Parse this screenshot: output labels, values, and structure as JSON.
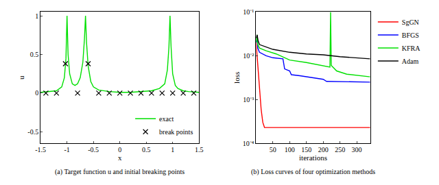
{
  "chart_data": [
    {
      "type": "line",
      "caption": "(a) Target function u and initial breaking points",
      "x_label": "x",
      "y_label": "u",
      "xlim": [
        -1.5,
        1.5
      ],
      "ylim": [
        -0.65,
        1.05
      ],
      "xticks": [
        -1.5,
        -1,
        -0.5,
        0,
        0.5,
        1,
        1.5
      ],
      "yticks": [
        -0.5,
        0,
        0.5,
        1
      ],
      "legend": "lower right",
      "series": [
        {
          "name": "exact",
          "type": "line",
          "color": "#00e000",
          "x": [
            -1.5,
            -1.3,
            -1.2,
            -1.1,
            -1.05,
            -1.02,
            -1.0,
            -0.98,
            -0.95,
            -0.9,
            -0.85,
            -0.8,
            -0.75,
            -0.7,
            -0.67,
            -0.65,
            -0.63,
            -0.6,
            -0.55,
            -0.5,
            -0.4,
            -0.2,
            0,
            0.2,
            0.4,
            0.6,
            0.75,
            0.85,
            0.9,
            0.93,
            0.95,
            0.97,
            1.0,
            1.05,
            1.1,
            1.2,
            1.3,
            1.5
          ],
          "values": [
            0.01,
            0.02,
            0.03,
            0.08,
            0.2,
            0.45,
            1.0,
            0.5,
            0.25,
            0.12,
            0.1,
            0.12,
            0.2,
            0.4,
            0.7,
            1.0,
            0.65,
            0.35,
            0.15,
            0.08,
            0.04,
            0.02,
            0.01,
            0.01,
            0.02,
            0.03,
            0.06,
            0.12,
            0.3,
            0.6,
            1.0,
            0.6,
            0.25,
            0.1,
            0.06,
            0.03,
            0.02,
            0.01
          ]
        },
        {
          "name": "break points",
          "type": "scatter",
          "marker": "x",
          "color": "#000000",
          "x": [
            -1.4,
            -1.2,
            -1.03,
            -0.8,
            -0.6,
            -0.4,
            -0.2,
            0,
            0.2,
            0.4,
            0.6,
            0.8,
            1.0,
            1.2,
            1.4
          ],
          "values": [
            0,
            0,
            0.38,
            0,
            0.38,
            0,
            0,
            0,
            0,
            0,
            0,
            0,
            0,
            0,
            0
          ]
        }
      ]
    },
    {
      "type": "line",
      "caption": "(b) Loss curves of four optimization methods",
      "x_label": "iterations",
      "y_label": "loss",
      "log": "y",
      "xlim": [
        0,
        340
      ],
      "ylim": [
        0.0001,
        0.1
      ],
      "xticks": [
        50,
        100,
        150,
        200,
        250,
        300
      ],
      "yticks": [
        {
          "value": 0.0001,
          "label": "10⁻⁴"
        },
        {
          "value": 0.001,
          "label": "10⁻³"
        },
        {
          "value": 0.01,
          "label": "10⁻²"
        },
        {
          "value": 0.1,
          "label": "10⁻¹"
        }
      ],
      "legend": "upper right",
      "series": [
        {
          "name": "SgGN",
          "color": "#ff0000",
          "x": [
            0,
            3,
            6,
            10,
            15,
            20,
            25,
            340
          ],
          "values": [
            0.02,
            0.01,
            0.004,
            0.0015,
            0.0006,
            0.0003,
            0.00023,
            0.00023
          ]
        },
        {
          "name": "BFGS",
          "color": "#0000ff",
          "x": [
            0,
            3,
            5,
            10,
            30,
            50,
            80,
            85,
            100,
            105,
            130,
            200,
            210,
            340
          ],
          "values": [
            0.02,
            0.025,
            0.015,
            0.012,
            0.01,
            0.009,
            0.0085,
            0.005,
            0.0045,
            0.0037,
            0.0035,
            0.0029,
            0.0026,
            0.0025
          ]
        },
        {
          "name": "KFRA",
          "color": "#00e000",
          "x": [
            0,
            3,
            5,
            10,
            30,
            60,
            100,
            150,
            220,
            222,
            224,
            240,
            270,
            340
          ],
          "values": [
            0.02,
            0.03,
            0.018,
            0.015,
            0.013,
            0.011,
            0.008,
            0.007,
            0.0055,
            0.1,
            0.006,
            0.0045,
            0.0038,
            0.0033
          ]
        },
        {
          "name": "Adam",
          "color": "#000000",
          "x": [
            0,
            3,
            6,
            10,
            50,
            100,
            150,
            200,
            250,
            300,
            340
          ],
          "values": [
            0.025,
            0.03,
            0.022,
            0.018,
            0.014,
            0.012,
            0.011,
            0.0105,
            0.0095,
            0.009,
            0.0085
          ]
        }
      ]
    }
  ]
}
